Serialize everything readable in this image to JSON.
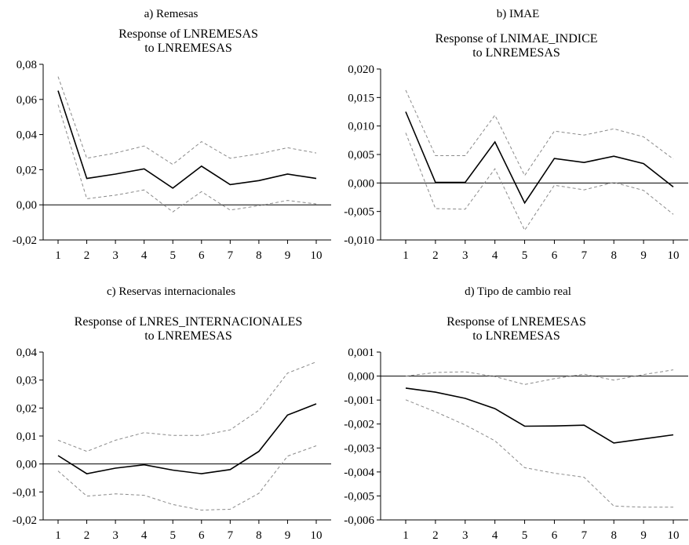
{
  "chart_data": [
    {
      "type": "line",
      "caption": "a) Remesas",
      "title_lines": [
        "Response of LNREMESAS",
        "to LNREMESAS"
      ],
      "x": [
        1,
        2,
        3,
        4,
        5,
        6,
        7,
        8,
        9,
        10
      ],
      "ylim": [
        -0.02,
        0.08
      ],
      "yticks": [
        -0.02,
        0,
        0.02,
        0.04,
        0.06,
        0.08
      ],
      "ytick_labels": [
        "-0,02",
        "0,00",
        "0,02",
        "0,04",
        "0,06",
        "0,08"
      ],
      "zero_line": true,
      "series": [
        {
          "role": "response",
          "style": "solid",
          "values": [
            0.065,
            0.015,
            0.0175,
            0.0205,
            0.0095,
            0.022,
            0.0115,
            0.0138,
            0.0175,
            0.015
          ]
        },
        {
          "role": "upper",
          "style": "dashed",
          "values": [
            0.073,
            0.0265,
            0.0295,
            0.0335,
            0.023,
            0.036,
            0.0265,
            0.029,
            0.0325,
            0.0295
          ]
        },
        {
          "role": "lower",
          "style": "dashed",
          "values": [
            0.057,
            0.0035,
            0.0055,
            0.0085,
            -0.004,
            0.0075,
            -0.003,
            -0.0005,
            0.0025,
            0.0005
          ]
        }
      ]
    },
    {
      "type": "line",
      "caption": "b) IMAE",
      "title_lines": [
        "Response of LNIMAE_INDICE",
        "to LNREMESAS"
      ],
      "x": [
        1,
        2,
        3,
        4,
        5,
        6,
        7,
        8,
        9,
        10
      ],
      "ylim": [
        -0.01,
        0.02
      ],
      "yticks": [
        -0.01,
        -0.005,
        0,
        0.005,
        0.01,
        0.015,
        0.02
      ],
      "ytick_labels": [
        "-0,010",
        "-0,005",
        "0,000",
        "0,005",
        "0,010",
        "0,015",
        "0,020"
      ],
      "zero_line": true,
      "series": [
        {
          "role": "response",
          "style": "solid",
          "values": [
            0.0125,
            0.0001,
            0.0001,
            0.0072,
            -0.0035,
            0.0043,
            0.0036,
            0.0047,
            0.0034,
            -0.0007
          ]
        },
        {
          "role": "upper",
          "style": "dashed",
          "values": [
            0.0163,
            0.0048,
            0.0048,
            0.0119,
            0.0013,
            0.0091,
            0.0084,
            0.0095,
            0.0081,
            0.0042
          ]
        },
        {
          "role": "lower",
          "style": "dashed",
          "values": [
            0.0088,
            -0.0045,
            -0.0046,
            0.0025,
            -0.0083,
            -0.0004,
            -0.0012,
            0.0001,
            -0.0013,
            -0.0055
          ]
        }
      ]
    },
    {
      "type": "line",
      "caption": "c) Reservas internacionales",
      "title_lines": [
        "Response of LNRES_INTERNACIONALES",
        "to LNREMESAS"
      ],
      "x": [
        1,
        2,
        3,
        4,
        5,
        6,
        7,
        8,
        9,
        10
      ],
      "ylim": [
        -0.02,
        0.04
      ],
      "yticks": [
        -0.02,
        -0.01,
        0,
        0.01,
        0.02,
        0.03,
        0.04
      ],
      "ytick_labels": [
        "-0,02",
        "-0,01",
        "0,00",
        "0,01",
        "0,02",
        "0,03",
        "0,04"
      ],
      "zero_line": true,
      "series": [
        {
          "role": "response",
          "style": "solid",
          "values": [
            0.003,
            -0.0035,
            -0.0015,
            -0.0003,
            -0.0022,
            -0.0035,
            -0.002,
            0.0045,
            0.0175,
            0.0215
          ]
        },
        {
          "role": "upper",
          "style": "dashed",
          "values": [
            0.0085,
            0.0045,
            0.0085,
            0.0112,
            0.0102,
            0.0102,
            0.0122,
            0.0192,
            0.0325,
            0.0365
          ]
        },
        {
          "role": "lower",
          "style": "dashed",
          "values": [
            -0.0025,
            -0.0115,
            -0.0107,
            -0.0112,
            -0.0145,
            -0.0165,
            -0.0162,
            -0.0105,
            0.0028,
            0.0065
          ]
        }
      ]
    },
    {
      "type": "line",
      "caption": "d) Tipo de cambio real",
      "title_lines": [
        "Response of LNREMESAS",
        "to LNREMESAS"
      ],
      "x": [
        1,
        2,
        3,
        4,
        5,
        6,
        7,
        8,
        9,
        10
      ],
      "ylim": [
        -0.006,
        0.001
      ],
      "yticks": [
        -0.006,
        -0.005,
        -0.004,
        -0.003,
        -0.002,
        -0.001,
        0,
        0.001
      ],
      "ytick_labels": [
        "-0,006",
        "-0,005",
        "-0,004",
        "-0,003",
        "-0,002",
        "-0,001",
        "0,000",
        "0,001"
      ],
      "zero_line": true,
      "series": [
        {
          "role": "response",
          "style": "solid",
          "values": [
            -0.0005,
            -0.00067,
            -0.00093,
            -0.00136,
            -0.00209,
            -0.00208,
            -0.00205,
            -0.00279,
            -0.00262,
            -0.00245
          ]
        },
        {
          "role": "upper",
          "style": "dashed",
          "values": [
            0.0,
            0.00015,
            0.00018,
            -2e-05,
            -0.00035,
            -0.00011,
            8e-05,
            -0.00017,
            6e-05,
            0.00026
          ]
        },
        {
          "role": "lower",
          "style": "dashed",
          "values": [
            -0.00099,
            -0.00149,
            -0.00204,
            -0.0027,
            -0.00382,
            -0.00405,
            -0.00422,
            -0.00542,
            -0.00547,
            -0.00547
          ]
        }
      ]
    }
  ]
}
